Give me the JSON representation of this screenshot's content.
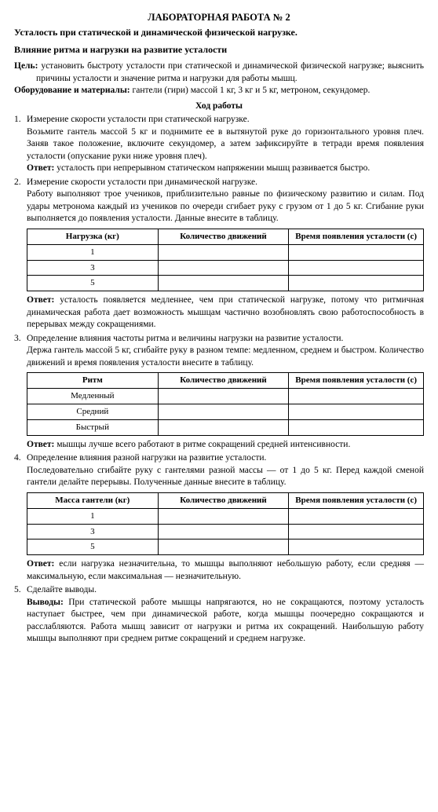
{
  "header": {
    "title": "ЛАБОРАТОРНАЯ РАБОТА № 2",
    "subtitle1": "Усталость при статической и динамической физической нагрузке.",
    "subtitle2": "Влияние ритма и нагрузки на развитие усталости"
  },
  "goal": {
    "label": "Цель:",
    "text": " установить быстроту усталости при статической и динамической физической нагрузке; выяснить причины усталости и значение ритма и нагрузки для работы мышц."
  },
  "equipment": {
    "label": "Оборудование и материалы:",
    "text": " гантели (гири) массой 1 кг, 3 кг и 5 кг, метроном, секундомер."
  },
  "procedure_head": "Ход работы",
  "steps": [
    {
      "head": "Измерение скорости усталости при статической нагрузке.",
      "body": "Возьмите гантель массой 5 кг и поднимите ее в вытянутой руке до горизонтального уровня плеч. Заняв такое положение, включите секундомер, а затем зафиксируйте в тетради время появления усталости (опускание руки ниже уровня плеч).",
      "answer": "усталость при непрерывном статическом напряжении мышц развивается быстро.",
      "table": null
    },
    {
      "head": "Измерение скорости усталости при динамической нагрузке.",
      "body": "Работу выполняют трое учеников, приблизительно равные по физическому развитию и силам. Под удары метронома каждый из учеников по очереди сгибает руку с грузом от 1 до 5 кг. Сгибание руки выполняется до появления усталости. Данные внесите в таблицу.",
      "answer": "усталость появляется медленнее, чем при статической нагрузке, потому что ритмичная динамическая работа дает возможность мышцам частично возобновлять свою работоспособность в перерывах между сокращениями.",
      "table": {
        "columns": [
          "Нагрузка (кг)",
          "Количество движений",
          "Время появления усталости (с)"
        ],
        "rows": [
          [
            "1",
            "",
            ""
          ],
          [
            "3",
            "",
            ""
          ],
          [
            "5",
            "",
            ""
          ]
        ]
      }
    },
    {
      "head": "Определение влияния частоты ритма и величины нагрузки на развитие усталости.",
      "body": "Держа гантель массой 5 кг, сгибайте руку в разном темпе: медленном, среднем и быстром. Количество движений и время появления усталости внесите в таблицу.",
      "answer": "мышцы лучше всего работают в ритме сокращений средней интенсивности.",
      "table": {
        "columns": [
          "Ритм",
          "Количество движений",
          "Время появления усталости (с)"
        ],
        "rows": [
          [
            "Медленный",
            "",
            ""
          ],
          [
            "Средний",
            "",
            ""
          ],
          [
            "Быстрый",
            "",
            ""
          ]
        ]
      }
    },
    {
      "head": "Определение влияния разной нагрузки на развитие усталости.",
      "body": "Последовательно сгибайте руку с гантелями разной массы — от 1 до 5 кг. Перед каждой сменой гантели делайте перерывы. Полученные данные внесите в таблицу.",
      "answer": "если нагрузка незначительна, то мышцы выполняют небольшую работу, если средняя — максимальную, если максимальная — незначительную.",
      "table": {
        "columns": [
          "Масса гантели (кг)",
          "Количество движений",
          "Время появления усталости (с)"
        ],
        "rows": [
          [
            "1",
            "",
            ""
          ],
          [
            "3",
            "",
            ""
          ],
          [
            "5",
            "",
            ""
          ]
        ]
      }
    },
    {
      "head": "Сделайте выводы."
    }
  ],
  "answer_label": "Ответ:",
  "conclusion": {
    "label": "Выводы:",
    "text": " При статической работе мышцы напрягаются, но не сокращаются, поэтому усталость наступает быстрее, чем при динамической работе, когда мышцы поочередно сокращаются и расслабляются. Работа мышц зависит от нагрузки и ритма их сокращений. Наибольшую работу мышцы выполняют при среднем ритме сокращений и среднем нагрузке."
  },
  "style": {
    "bg": "#ffffff",
    "text": "#000000",
    "border": "#000000",
    "col_widths": [
      "33%",
      "33%",
      "34%"
    ]
  }
}
